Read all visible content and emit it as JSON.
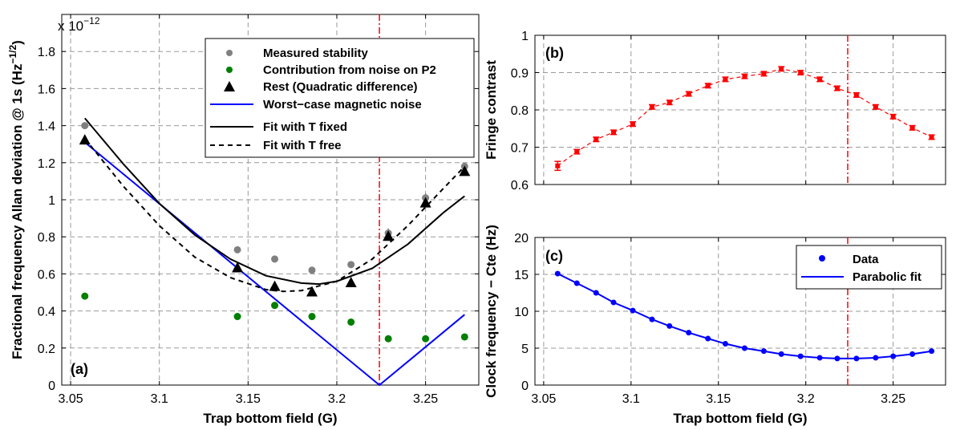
{
  "chart_data": [
    {
      "id": "a",
      "type": "scatter",
      "panel_label": "(a)",
      "exponent_label": "x 10^-12",
      "exponent_base": "x 10",
      "exponent_power": "−12",
      "xlabel": "Trap bottom field (G)",
      "ylabel_main": "Fractional frequency Allan deviation @ 1s (Hz",
      "ylabel_sup": "−1/2",
      "ylabel_end": ")",
      "xlim": [
        3.045,
        3.28
      ],
      "ylim": [
        0,
        2.0
      ],
      "xticks": [
        3.05,
        3.1,
        3.15,
        3.2,
        3.25
      ],
      "xtick_labels": [
        "3.05",
        "3.1",
        "3.15",
        "3.2",
        "3.25"
      ],
      "yticks": [
        0,
        0.2,
        0.4,
        0.6,
        0.8,
        1,
        1.2,
        1.4,
        1.6,
        1.8
      ],
      "ytick_labels": [
        "0",
        "0.2",
        "0.4",
        "0.6",
        "0.8",
        "1",
        "1.2",
        "1.4",
        "1.6",
        "1.8"
      ],
      "grid": true,
      "legend_position": "top-right",
      "vline_x": 3.224,
      "series": [
        {
          "name": "Measured stability",
          "kind": "marker",
          "marker": "circle",
          "color": "#808080",
          "x": [
            3.058,
            3.144,
            3.165,
            3.186,
            3.208,
            3.229,
            3.25,
            3.272
          ],
          "y": [
            1.4,
            0.73,
            0.68,
            0.62,
            0.65,
            0.82,
            1.01,
            1.18
          ],
          "err": [
            0.012,
            0.012,
            0.012,
            0.012,
            0.012,
            0.025,
            0.025,
            0.012
          ]
        },
        {
          "name": "Contribution from noise on P2",
          "kind": "marker",
          "marker": "circle",
          "color": "#007f00",
          "x": [
            3.058,
            3.144,
            3.165,
            3.186,
            3.208,
            3.229,
            3.25,
            3.272
          ],
          "y": [
            0.48,
            0.37,
            0.43,
            0.37,
            0.34,
            0.25,
            0.25,
            0.26
          ]
        },
        {
          "name": "Rest (Quadratic difference)",
          "kind": "marker",
          "marker": "triangle",
          "color": "#000000",
          "x": [
            3.058,
            3.144,
            3.165,
            3.186,
            3.208,
            3.229,
            3.25,
            3.272
          ],
          "y": [
            1.32,
            0.63,
            0.53,
            0.5,
            0.55,
            0.8,
            0.98,
            1.15
          ]
        },
        {
          "name": "Worst−case magnetic noise",
          "kind": "line",
          "color": "#0000ff",
          "dash": "",
          "x": [
            3.058,
            3.224,
            3.272
          ],
          "y": [
            1.31,
            0.0,
            0.38
          ]
        },
        {
          "name": "Fit with T fixed",
          "kind": "line",
          "color": "#000000",
          "dash": "",
          "x": [
            3.058,
            3.08,
            3.1,
            3.12,
            3.14,
            3.16,
            3.18,
            3.19,
            3.2,
            3.22,
            3.24,
            3.26,
            3.272
          ],
          "y": [
            1.44,
            1.19,
            0.98,
            0.81,
            0.68,
            0.59,
            0.55,
            0.545,
            0.56,
            0.63,
            0.76,
            0.93,
            1.02
          ]
        },
        {
          "name": "Fit with T free",
          "kind": "line",
          "color": "#000000",
          "dash": "6,5",
          "x": [
            3.058,
            3.08,
            3.1,
            3.12,
            3.14,
            3.16,
            3.17,
            3.18,
            3.2,
            3.22,
            3.24,
            3.26,
            3.272
          ],
          "y": [
            1.33,
            1.07,
            0.86,
            0.69,
            0.58,
            0.515,
            0.505,
            0.51,
            0.56,
            0.68,
            0.86,
            1.06,
            1.18
          ]
        }
      ]
    },
    {
      "id": "b",
      "type": "line",
      "panel_label": "(b)",
      "xlabel": "",
      "ylabel": "Fringe contrast",
      "xlim": [
        3.045,
        3.28
      ],
      "ylim": [
        0.6,
        1.0
      ],
      "xticks": [
        3.05,
        3.1,
        3.15,
        3.2,
        3.25
      ],
      "yticks": [
        0.6,
        0.7,
        0.8,
        0.9,
        1.0
      ],
      "ytick_labels": [
        "0.6",
        "0.7",
        "0.8",
        "0.9",
        "1"
      ],
      "grid": true,
      "vline_x": 3.224,
      "series": [
        {
          "name": "",
          "color": "#ff0000",
          "marker": "square",
          "dash": "5,4",
          "x": [
            3.058,
            3.069,
            3.08,
            3.09,
            3.101,
            3.112,
            3.122,
            3.133,
            3.144,
            3.154,
            3.165,
            3.176,
            3.186,
            3.197,
            3.208,
            3.218,
            3.229,
            3.24,
            3.25,
            3.261,
            3.272
          ],
          "y": [
            0.65,
            0.688,
            0.721,
            0.74,
            0.762,
            0.808,
            0.82,
            0.843,
            0.865,
            0.882,
            0.89,
            0.897,
            0.91,
            0.9,
            0.882,
            0.858,
            0.84,
            0.808,
            0.782,
            0.752,
            0.727
          ],
          "err": [
            0.012,
            0.006,
            0.006,
            0.006,
            0.006,
            0.006,
            0.006,
            0.006,
            0.006,
            0.006,
            0.006,
            0.006,
            0.006,
            0.006,
            0.006,
            0.006,
            0.006,
            0.006,
            0.006,
            0.006,
            0.006
          ]
        }
      ]
    },
    {
      "id": "c",
      "type": "line",
      "panel_label": "(c)",
      "xlabel": "Trap bottom field (G)",
      "ylabel": "Clock frequency − Cte (Hz)",
      "xlim": [
        3.045,
        3.28
      ],
      "ylim": [
        0,
        20
      ],
      "xticks": [
        3.05,
        3.1,
        3.15,
        3.2,
        3.25
      ],
      "xtick_labels": [
        "3.05",
        "3.1",
        "3.15",
        "3.2",
        "3.25"
      ],
      "yticks": [
        0,
        5,
        10,
        15,
        20
      ],
      "ytick_labels": [
        "0",
        "5",
        "10",
        "15",
        "20"
      ],
      "grid": true,
      "legend_position": "top-right",
      "vline_x": 3.224,
      "series": [
        {
          "name": "Data",
          "kind": "marker",
          "color": "#0000ff",
          "x": [
            3.058,
            3.069,
            3.08,
            3.09,
            3.101,
            3.112,
            3.122,
            3.133,
            3.144,
            3.154,
            3.165,
            3.176,
            3.186,
            3.197,
            3.208,
            3.218,
            3.229,
            3.24,
            3.25,
            3.261,
            3.272
          ],
          "y": [
            15.1,
            13.8,
            12.5,
            11.2,
            10.1,
            8.9,
            8.0,
            7.1,
            6.3,
            5.6,
            5.0,
            4.6,
            4.2,
            3.9,
            3.7,
            3.6,
            3.6,
            3.7,
            3.9,
            4.2,
            4.6
          ]
        },
        {
          "name": "Parabolic fit",
          "kind": "line",
          "color": "#0000ff"
        }
      ]
    }
  ]
}
